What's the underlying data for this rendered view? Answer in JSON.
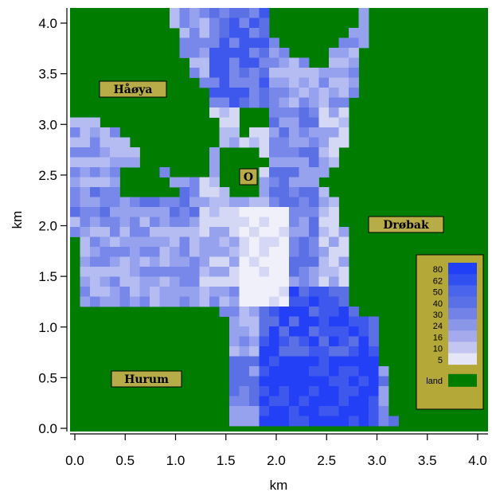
{
  "axes": {
    "xlabel": "km",
    "ylabel": "km",
    "xticks": [
      "0.0",
      "0.5",
      "1.0",
      "1.5",
      "2.0",
      "2.5",
      "3.0",
      "3.5",
      "4.0"
    ],
    "yticks": [
      "0.0",
      "0.5",
      "1.0",
      "1.5",
      "2.0",
      "2.5",
      "3.0",
      "3.5",
      "4.0"
    ],
    "xlim": [
      -0.05,
      4.15
    ],
    "ylim": [
      -0.05,
      4.15
    ]
  },
  "places": {
    "hoya": "Håøya",
    "o": "O",
    "drobak": "Drøbak",
    "hurum": "Hurum"
  },
  "legend": {
    "levels": [
      "80",
      "62",
      "50",
      "40",
      "30",
      "24",
      "16",
      "10",
      "5"
    ],
    "level_colors": [
      "#2040f8",
      "#3050f0",
      "#4a64ec",
      "#5a70e6",
      "#7282e6",
      "#8a96e8",
      "#a4aaec",
      "#c2c6f0",
      "#e4e6f8"
    ],
    "land_label": "land",
    "land_color": "#007c00",
    "frame_color": "#b4a838"
  },
  "map_colors": {
    "land": "#007c00",
    "water_scale": [
      "#f0f0fa",
      "#d4d8f4",
      "#b4bcf2",
      "#96a2ee",
      "#7888ea",
      "#5c70e6",
      "#3e58ee",
      "#2440f6"
    ]
  }
}
